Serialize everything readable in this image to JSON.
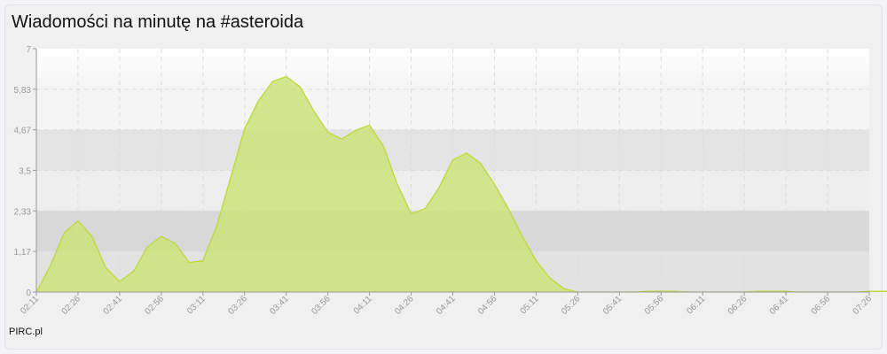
{
  "title": "Wiadomości na minutę na #asteroida",
  "footer": "PIRC.pl",
  "colors": {
    "fill": "#cfe27a",
    "line": "#bcd93a"
  },
  "chart_data": {
    "type": "area",
    "title": "Wiadomości na minutę na #asteroida",
    "xlabel": "",
    "ylabel": "",
    "ylim": [
      0,
      7
    ],
    "y_ticks": [
      "0",
      "1,17",
      "2,33",
      "3,5",
      "4,67",
      "5,83",
      "7"
    ],
    "x_tick_labels": [
      "02:11",
      "02:26",
      "02:41",
      "02:56",
      "03:11",
      "03:26",
      "03:41",
      "03:56",
      "04:11",
      "04:26",
      "04:41",
      "04:56",
      "05:11",
      "05:26",
      "05:41",
      "05:56",
      "06:11",
      "06:26",
      "06:41",
      "06:56",
      "07:26"
    ],
    "grid": true,
    "x_step_minutes": 5,
    "values": [
      0,
      0.75,
      1.7,
      2.05,
      1.6,
      0.7,
      0.3,
      0.6,
      1.3,
      1.6,
      1.4,
      0.85,
      0.9,
      1.9,
      3.3,
      4.7,
      5.5,
      6.05,
      6.2,
      5.9,
      5.2,
      4.6,
      4.4,
      4.65,
      4.8,
      4.2,
      3.1,
      2.25,
      2.4,
      3.0,
      3.8,
      4.0,
      3.7,
      3.1,
      2.4,
      1.6,
      0.9,
      0.4,
      0.1,
      0,
      0,
      0,
      0,
      0,
      0.02,
      0.02,
      0.02,
      0,
      0,
      0,
      0,
      0,
      0.02,
      0.02,
      0.02,
      0,
      0,
      0,
      0,
      0,
      0.02,
      0.02,
      0.02,
      0,
      0,
      0
    ]
  }
}
